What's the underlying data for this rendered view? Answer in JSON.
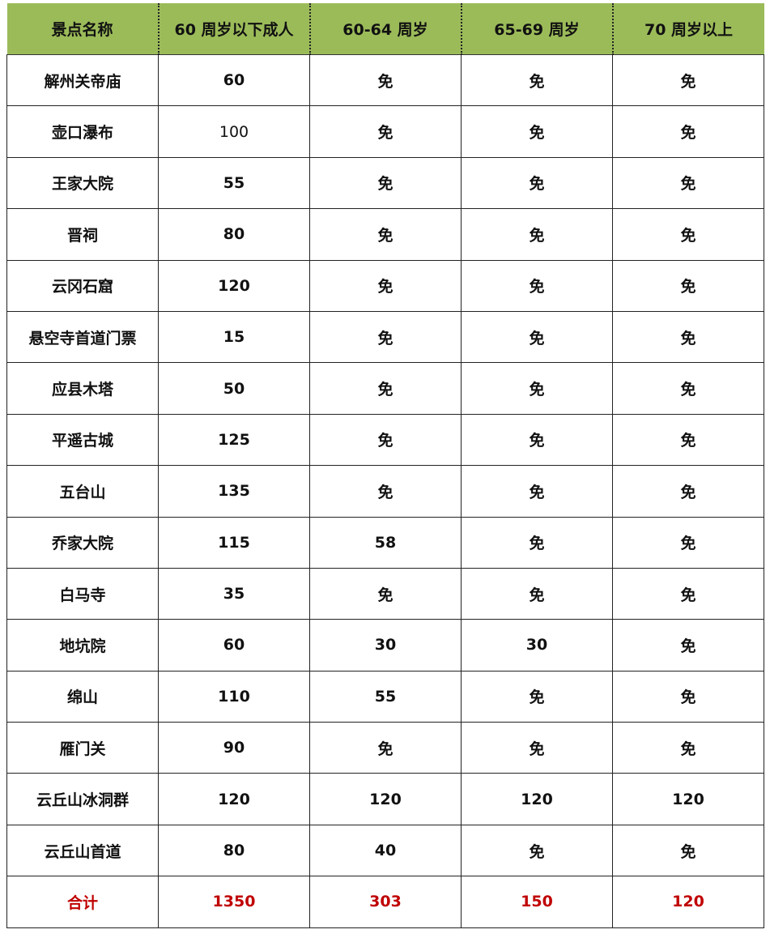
{
  "colors": {
    "header_bg": "#9bbb59",
    "total_text": "#c00000"
  },
  "headers": [
    "景点名称",
    "60 周岁以下成人",
    "60-64 周岁",
    "65-69 周岁",
    "70 周岁以上"
  ],
  "rows": [
    [
      "解州关帝庙",
      "60",
      "免",
      "免",
      "免"
    ],
    [
      "壶口瀑布",
      "100",
      "免",
      "免",
      "免"
    ],
    [
      "王家大院",
      "55",
      "免",
      "免",
      "免"
    ],
    [
      "晋祠",
      "80",
      "免",
      "免",
      "免"
    ],
    [
      "云冈石窟",
      "120",
      "免",
      "免",
      "免"
    ],
    [
      "悬空寺首道门票",
      "15",
      "免",
      "免",
      "免"
    ],
    [
      "应县木塔",
      "50",
      "免",
      "免",
      "免"
    ],
    [
      "平遥古城",
      "125",
      "免",
      "免",
      "免"
    ],
    [
      "五台山",
      "135",
      "免",
      "免",
      "免"
    ],
    [
      "乔家大院",
      "115",
      "58",
      "免",
      "免"
    ],
    [
      "白马寺",
      "35",
      "免",
      "免",
      "免"
    ],
    [
      "地坑院",
      "60",
      "30",
      "30",
      "免"
    ],
    [
      "绵山",
      "110",
      "55",
      "免",
      "免"
    ],
    [
      "雁门关",
      "90",
      "免",
      "免",
      "免"
    ],
    [
      "云丘山冰洞群",
      "120",
      "120",
      "120",
      "120"
    ],
    [
      "云丘山首道",
      "80",
      "40",
      "免",
      "免"
    ]
  ],
  "total": [
    "合计",
    "1350",
    "303",
    "150",
    "120"
  ]
}
